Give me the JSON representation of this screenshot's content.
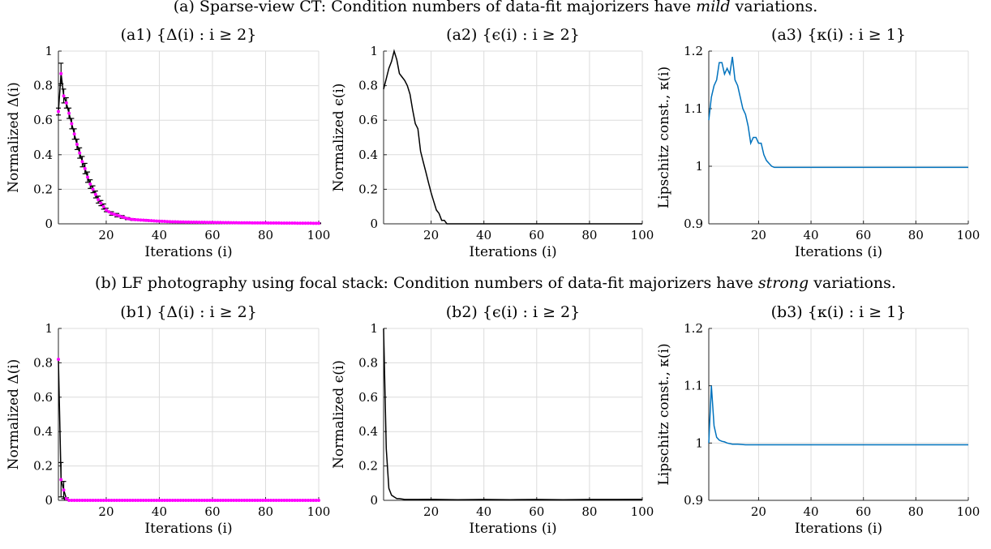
{
  "row_titles": [
    {
      "prefix": "(a) Sparse-view CT: Condition numbers of data-fit majorizers have ",
      "emph": "mild",
      "suffix": " variations."
    },
    {
      "prefix": "(b) LF photography using focal stack: Condition numbers of data-fit majorizers have ",
      "emph": "strong",
      "suffix": " variations."
    }
  ],
  "colors": {
    "black_series": "#000000",
    "magenta_marker": "#ff00ff",
    "blue_series": "#0072bd",
    "grid": "#dcdcdc"
  },
  "chart_data": [
    {
      "id": "a1",
      "type": "line",
      "title": "(a1) {Δ(i) : i ≥ 2}",
      "xlabel": "Iterations (i)",
      "ylabel": "Normalized Δ(i)",
      "xlim": [
        2,
        100
      ],
      "ylim": [
        0,
        1
      ],
      "xticks": [
        20,
        40,
        60,
        80,
        100
      ],
      "yticks": [
        0,
        0.2,
        0.4,
        0.6,
        0.8,
        1
      ],
      "ytick_labels": [
        "0",
        "0.2",
        "0.4",
        "0.6",
        "0.8",
        "1"
      ],
      "grid": true,
      "errorbars": true,
      "markers": "magenta",
      "series": [
        {
          "x": [
            2,
            3,
            4,
            5,
            6,
            7,
            8,
            9,
            10,
            11,
            12,
            13,
            14,
            15,
            16,
            17,
            18,
            19,
            20,
            22,
            24,
            26,
            28,
            30,
            35,
            40,
            45,
            50,
            60,
            70,
            80,
            90,
            100
          ],
          "y": [
            0.65,
            0.87,
            0.74,
            0.7,
            0.64,
            0.58,
            0.52,
            0.46,
            0.41,
            0.36,
            0.32,
            0.27,
            0.23,
            0.2,
            0.17,
            0.14,
            0.12,
            0.1,
            0.08,
            0.06,
            0.05,
            0.04,
            0.03,
            0.025,
            0.02,
            0.015,
            0.012,
            0.01,
            0.008,
            0.006,
            0.005,
            0.004,
            0.003
          ],
          "err": [
            0.02,
            0.06,
            0.04,
            0.03,
            0.03,
            0.03,
            0.03,
            0.03,
            0.03,
            0.03,
            0.03,
            0.03,
            0.025,
            0.02,
            0.02,
            0.02,
            0.015,
            0.015,
            0.01,
            0.01,
            0.01,
            0.008,
            0.006,
            0.005,
            0.004,
            0.003,
            0.003,
            0.002,
            0.002,
            0.002,
            0.002,
            0.002,
            0.002
          ]
        }
      ]
    },
    {
      "id": "a2",
      "type": "line",
      "title": "(a2) {ϵ(i) : i ≥ 2}",
      "xlabel": "Iterations (i)",
      "ylabel": "Normalized ϵ(i)",
      "xlim": [
        2,
        100
      ],
      "ylim": [
        0,
        1
      ],
      "xticks": [
        20,
        40,
        60,
        80,
        100
      ],
      "yticks": [
        0,
        0.2,
        0.4,
        0.6,
        0.8,
        1
      ],
      "ytick_labels": [
        "0",
        "0.2",
        "0.4",
        "0.6",
        "0.8",
        "1"
      ],
      "grid": true,
      "series": [
        {
          "x": [
            2,
            3,
            4,
            5,
            6,
            7,
            8,
            9,
            10,
            11,
            12,
            13,
            14,
            15,
            16,
            17,
            18,
            19,
            20,
            21,
            22,
            23,
            24,
            25,
            26,
            30,
            40,
            50,
            60,
            70,
            80,
            90,
            100
          ],
          "y": [
            0.78,
            0.84,
            0.9,
            0.94,
            1.0,
            0.95,
            0.87,
            0.85,
            0.83,
            0.8,
            0.75,
            0.66,
            0.58,
            0.55,
            0.42,
            0.36,
            0.3,
            0.24,
            0.18,
            0.13,
            0.08,
            0.06,
            0.02,
            0.02,
            0.0,
            0.0,
            0.0,
            0.0,
            0.0,
            0.0,
            0.0,
            0.0,
            0.0
          ]
        }
      ]
    },
    {
      "id": "a3",
      "type": "line",
      "title": "(a3) {κ(i) : i ≥ 1}",
      "xlabel": "Iterations (i)",
      "ylabel": "Lipschitz const., κ(i)",
      "xlim": [
        1,
        100
      ],
      "ylim": [
        0.9,
        1.2
      ],
      "xticks": [
        20,
        40,
        60,
        80,
        100
      ],
      "yticks": [
        0.9,
        1.0,
        1.1,
        1.2
      ],
      "ytick_labels": [
        "0.9",
        "1",
        "1.1",
        "1.2"
      ],
      "grid": true,
      "series": [
        {
          "x": [
            1,
            2,
            3,
            4,
            5,
            6,
            7,
            8,
            9,
            10,
            11,
            12,
            13,
            14,
            15,
            16,
            17,
            18,
            19,
            20,
            21,
            22,
            23,
            24,
            25,
            26,
            28,
            30,
            40,
            50,
            60,
            70,
            80,
            90,
            100
          ],
          "y": [
            1.08,
            1.12,
            1.14,
            1.15,
            1.18,
            1.18,
            1.16,
            1.17,
            1.16,
            1.19,
            1.15,
            1.14,
            1.12,
            1.1,
            1.09,
            1.07,
            1.04,
            1.05,
            1.05,
            1.04,
            1.04,
            1.02,
            1.01,
            1.005,
            1.0,
            0.998,
            0.998,
            0.998,
            0.998,
            0.998,
            0.998,
            0.998,
            0.998,
            0.998,
            0.998
          ]
        }
      ]
    },
    {
      "id": "b1",
      "type": "line",
      "title": "(b1) {Δ(i) : i ≥ 2}",
      "xlabel": "Iterations (i)",
      "ylabel": "Normalized Δ(i)",
      "xlim": [
        2,
        100
      ],
      "ylim": [
        0,
        1
      ],
      "xticks": [
        20,
        40,
        60,
        80,
        100
      ],
      "yticks": [
        0,
        0.2,
        0.4,
        0.6,
        0.8,
        1
      ],
      "ytick_labels": [
        "0",
        "0.2",
        "0.4",
        "0.6",
        "0.8",
        "1"
      ],
      "grid": true,
      "errorbars": true,
      "markers": "magenta",
      "series": [
        {
          "x": [
            2,
            3,
            4,
            5,
            6,
            7,
            8,
            10,
            15,
            20,
            30,
            40,
            50,
            60,
            70,
            80,
            90,
            100
          ],
          "y": [
            0.82,
            0.12,
            0.06,
            0.01,
            0.0,
            0.0,
            0.0,
            0.0,
            0.0,
            0.0,
            0.0,
            0.0,
            0.0,
            0.0,
            0.0,
            0.0,
            0.0,
            0.0
          ],
          "err": [
            0.0,
            0.1,
            0.05,
            0.005,
            0.002,
            0.0,
            0.0,
            0.0,
            0.0,
            0.0,
            0.0,
            0.0,
            0.0,
            0.0,
            0.0,
            0.0,
            0.0,
            0.0
          ]
        }
      ]
    },
    {
      "id": "b2",
      "type": "line",
      "title": "(b2) {ϵ(i) : i ≥ 2}",
      "xlabel": "Iterations (i)",
      "ylabel": "Normalized ϵ(i)",
      "xlim": [
        2,
        100
      ],
      "ylim": [
        0,
        1
      ],
      "xticks": [
        20,
        40,
        60,
        80,
        100
      ],
      "yticks": [
        0,
        0.2,
        0.4,
        0.6,
        0.8,
        1
      ],
      "ytick_labels": [
        "0",
        "0.2",
        "0.4",
        "0.6",
        "0.8",
        "1"
      ],
      "grid": true,
      "series": [
        {
          "x": [
            2,
            3,
            4,
            5,
            6,
            7,
            8,
            10,
            15,
            20,
            30,
            40,
            50,
            60,
            70,
            80,
            90,
            100
          ],
          "y": [
            1.0,
            0.3,
            0.07,
            0.03,
            0.02,
            0.01,
            0.01,
            0.005,
            0.005,
            0.006,
            0.004,
            0.005,
            0.004,
            0.005,
            0.004,
            0.005,
            0.005,
            0.006
          ]
        }
      ]
    },
    {
      "id": "b3",
      "type": "line",
      "title": "(b3) {κ(i) : i ≥ 1}",
      "xlabel": "Iterations (i)",
      "ylabel": "Lipschitz const., κ(i)",
      "xlim": [
        1,
        100
      ],
      "ylim": [
        0.9,
        1.2
      ],
      "xticks": [
        20,
        40,
        60,
        80,
        100
      ],
      "yticks": [
        0.9,
        1.0,
        1.1,
        1.2
      ],
      "ytick_labels": [
        "0.9",
        "1",
        "1.1",
        "1.2"
      ],
      "grid": true,
      "series": [
        {
          "x": [
            1,
            2,
            3,
            4,
            5,
            6,
            7,
            8,
            10,
            12,
            15,
            20,
            30,
            40,
            50,
            60,
            70,
            80,
            90,
            100
          ],
          "y": [
            1.0,
            1.1,
            1.03,
            1.01,
            1.005,
            1.003,
            1.002,
            1.0,
            0.998,
            0.998,
            0.997,
            0.997,
            0.997,
            0.997,
            0.997,
            0.997,
            0.997,
            0.997,
            0.997,
            0.997
          ]
        }
      ]
    }
  ]
}
